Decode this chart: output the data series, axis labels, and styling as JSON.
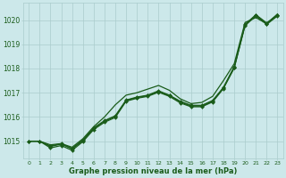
{
  "bg_color": "#cce8ea",
  "grid_color": "#aacccc",
  "line_color": "#1a5c1a",
  "marker_color": "#1a5c1a",
  "xlabel": "Graphe pression niveau de la mer (hPa)",
  "xlabel_color": "#1a5c1a",
  "ylim": [
    1014.3,
    1020.7
  ],
  "xlim": [
    -0.5,
    23.5
  ],
  "yticks": [
    1015,
    1016,
    1017,
    1018,
    1019,
    1020
  ],
  "xticks": [
    0,
    1,
    2,
    3,
    4,
    5,
    6,
    7,
    8,
    9,
    10,
    11,
    12,
    13,
    14,
    15,
    16,
    17,
    18,
    19,
    20,
    21,
    22,
    23
  ],
  "line_upper": {
    "x": [
      0,
      1,
      2,
      3,
      4,
      5,
      6,
      7,
      8,
      9,
      10,
      11,
      12,
      13,
      14,
      15,
      16,
      17,
      18,
      19,
      20,
      21,
      22,
      23
    ],
    "y": [
      1015.0,
      1015.0,
      1014.85,
      1014.9,
      1014.75,
      1015.1,
      1015.6,
      1016.0,
      1016.5,
      1016.9,
      1017.0,
      1017.15,
      1017.3,
      1017.1,
      1016.75,
      1016.55,
      1016.6,
      1016.85,
      1017.5,
      1018.2,
      1019.9,
      1020.1,
      1019.85,
      1020.25
    ],
    "has_markers": false
  },
  "line_mid1": {
    "x": [
      0,
      1,
      2,
      3,
      4,
      5,
      6,
      7,
      8,
      9,
      10,
      11,
      12,
      13,
      14,
      15,
      16,
      17,
      18,
      19,
      20,
      21,
      22,
      23
    ],
    "y": [
      1015.0,
      1015.0,
      1014.8,
      1014.9,
      1014.7,
      1015.05,
      1015.55,
      1015.85,
      1016.05,
      1016.7,
      1016.82,
      1016.9,
      1017.08,
      1016.9,
      1016.65,
      1016.48,
      1016.48,
      1016.68,
      1017.22,
      1018.08,
      1019.82,
      1020.22,
      1019.88,
      1020.22
    ],
    "has_markers": true
  },
  "line_mid2": {
    "x": [
      0,
      1,
      2,
      3,
      4,
      5,
      6,
      7,
      8,
      9,
      10,
      11,
      12,
      13,
      14,
      15,
      16,
      17,
      18,
      19,
      20,
      21,
      22,
      23
    ],
    "y": [
      1015.0,
      1015.0,
      1014.78,
      1014.88,
      1014.68,
      1015.02,
      1015.52,
      1015.82,
      1016.02,
      1016.68,
      1016.8,
      1016.88,
      1017.05,
      1016.88,
      1016.62,
      1016.45,
      1016.45,
      1016.65,
      1017.2,
      1018.05,
      1019.8,
      1020.2,
      1019.85,
      1020.2
    ],
    "has_markers": true
  },
  "line_lower": {
    "x": [
      0,
      1,
      2,
      3,
      4,
      5,
      6,
      7,
      8,
      9,
      10,
      11,
      12,
      13,
      14,
      15,
      16,
      17,
      18,
      19,
      20,
      21,
      22,
      23
    ],
    "y": [
      1015.0,
      1015.0,
      1014.72,
      1014.82,
      1014.62,
      1014.98,
      1015.48,
      1015.78,
      1015.98,
      1016.65,
      1016.77,
      1016.85,
      1017.02,
      1016.85,
      1016.58,
      1016.42,
      1016.42,
      1016.62,
      1017.17,
      1018.02,
      1019.77,
      1020.17,
      1019.82,
      1020.17
    ],
    "has_markers": true
  }
}
